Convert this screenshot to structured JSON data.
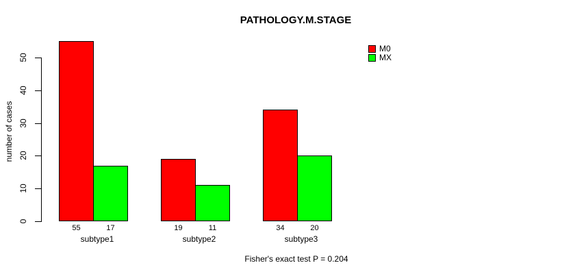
{
  "chart_data": {
    "type": "bar",
    "title": "PATHOLOGY.M.STAGE",
    "categories": [
      "subtype1",
      "subtype2",
      "subtype3"
    ],
    "series": [
      {
        "name": "M0",
        "color": "#FF0000",
        "values": [
          55,
          19,
          34
        ]
      },
      {
        "name": "MX",
        "color": "#00FF00",
        "values": [
          17,
          11,
          20
        ]
      }
    ],
    "bar_value_labels": [
      [
        55,
        17
      ],
      [
        19,
        11
      ],
      [
        34,
        20
      ]
    ],
    "xlabel": "",
    "ylabel": "number of cases",
    "ylim": [
      0,
      55
    ],
    "yticks": [
      0,
      10,
      20,
      30,
      40,
      50
    ],
    "grid": false,
    "legend_position": "top-right",
    "bar_border_color": "#000000",
    "background_color": "#FFFFFF",
    "annotation": "Fisher's exact test P = 0.204"
  }
}
